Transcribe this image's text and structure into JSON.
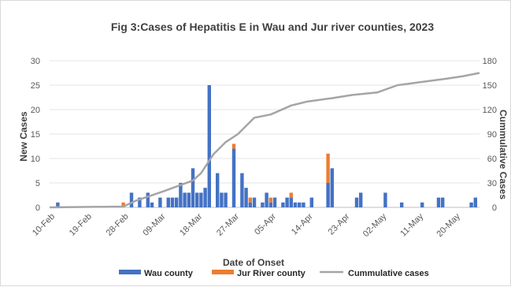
{
  "chart_data": {
    "type": "bar",
    "title": "Fig 3:Cases of Hepatitis E in Wau and Jur river counties, 2023",
    "xlabel": "Date of Onset",
    "ylabel": "New Cases",
    "y2label": "Cummulative Cases",
    "ylim": [
      0,
      30
    ],
    "y2lim": [
      0,
      180
    ],
    "yticks": [
      0,
      5,
      10,
      15,
      20,
      25,
      30
    ],
    "y2ticks": [
      0,
      30,
      60,
      90,
      120,
      150,
      180
    ],
    "x_tick_labels": [
      "10-Feb",
      "19-Feb",
      "28-Feb",
      "09-Mar",
      "18-Mar",
      "27-Mar",
      "05-Apr",
      "14-Apr",
      "23-Apr",
      "02-May",
      "11-May",
      "20-May"
    ],
    "x_range": [
      "2023-02-10",
      "2023-05-26"
    ],
    "grid": true,
    "legend_position": "bottom",
    "colors": {
      "wau": "#4472c4",
      "jur": "#ed7d31",
      "cumulative": "#a5a5a5"
    },
    "series": [
      {
        "name": "Wau county",
        "type": "bar",
        "points": [
          [
            "2023-02-12",
            1
          ],
          [
            "2023-03-02",
            3
          ],
          [
            "2023-03-04",
            2
          ],
          [
            "2023-03-06",
            3
          ],
          [
            "2023-03-07",
            1
          ],
          [
            "2023-03-09",
            2
          ],
          [
            "2023-03-11",
            2
          ],
          [
            "2023-03-12",
            2
          ],
          [
            "2023-03-13",
            2
          ],
          [
            "2023-03-14",
            5
          ],
          [
            "2023-03-15",
            3
          ],
          [
            "2023-03-16",
            3
          ],
          [
            "2023-03-17",
            8
          ],
          [
            "2023-03-18",
            3
          ],
          [
            "2023-03-19",
            3
          ],
          [
            "2023-03-20",
            4
          ],
          [
            "2023-03-21",
            25
          ],
          [
            "2023-03-23",
            7
          ],
          [
            "2023-03-24",
            3
          ],
          [
            "2023-03-25",
            3
          ],
          [
            "2023-03-27",
            12
          ],
          [
            "2023-03-29",
            7
          ],
          [
            "2023-03-30",
            4
          ],
          [
            "2023-03-31",
            1
          ],
          [
            "2023-04-01",
            2
          ],
          [
            "2023-04-03",
            1
          ],
          [
            "2023-04-04",
            3
          ],
          [
            "2023-04-05",
            1
          ],
          [
            "2023-04-06",
            2
          ],
          [
            "2023-04-08",
            1
          ],
          [
            "2023-04-09",
            2
          ],
          [
            "2023-04-10",
            2
          ],
          [
            "2023-04-11",
            1
          ],
          [
            "2023-04-12",
            1
          ],
          [
            "2023-04-13",
            1
          ],
          [
            "2023-04-15",
            2
          ],
          [
            "2023-04-19",
            5
          ],
          [
            "2023-04-20",
            8
          ],
          [
            "2023-04-26",
            2
          ],
          [
            "2023-04-27",
            3
          ],
          [
            "2023-05-03",
            3
          ],
          [
            "2023-05-07",
            1
          ],
          [
            "2023-05-12",
            1
          ],
          [
            "2023-05-16",
            2
          ],
          [
            "2023-05-17",
            2
          ],
          [
            "2023-05-24",
            1
          ],
          [
            "2023-05-25",
            2
          ]
        ]
      },
      {
        "name": "Jur River county",
        "type": "bar",
        "points": [
          [
            "2023-02-28",
            1
          ],
          [
            "2023-03-27",
            1
          ],
          [
            "2023-03-31",
            1
          ],
          [
            "2023-04-05",
            1
          ],
          [
            "2023-04-10",
            1
          ],
          [
            "2023-04-19",
            6
          ]
        ]
      },
      {
        "name": "Cummulative cases",
        "type": "line",
        "axis": "secondary",
        "points": [
          [
            "2023-02-10",
            0
          ],
          [
            "2023-02-28",
            1
          ],
          [
            "2023-03-03",
            8
          ],
          [
            "2023-03-10",
            20
          ],
          [
            "2023-03-17",
            33
          ],
          [
            "2023-03-19",
            42
          ],
          [
            "2023-03-22",
            65
          ],
          [
            "2023-03-25",
            80
          ],
          [
            "2023-03-28",
            90
          ],
          [
            "2023-04-01",
            110
          ],
          [
            "2023-04-05",
            114
          ],
          [
            "2023-04-10",
            125
          ],
          [
            "2023-04-14",
            130
          ],
          [
            "2023-04-20",
            134
          ],
          [
            "2023-04-25",
            138
          ],
          [
            "2023-05-01",
            141
          ],
          [
            "2023-05-06",
            150
          ],
          [
            "2023-05-12",
            154
          ],
          [
            "2023-05-18",
            158
          ],
          [
            "2023-05-22",
            161
          ],
          [
            "2023-05-26",
            165
          ]
        ]
      }
    ]
  }
}
